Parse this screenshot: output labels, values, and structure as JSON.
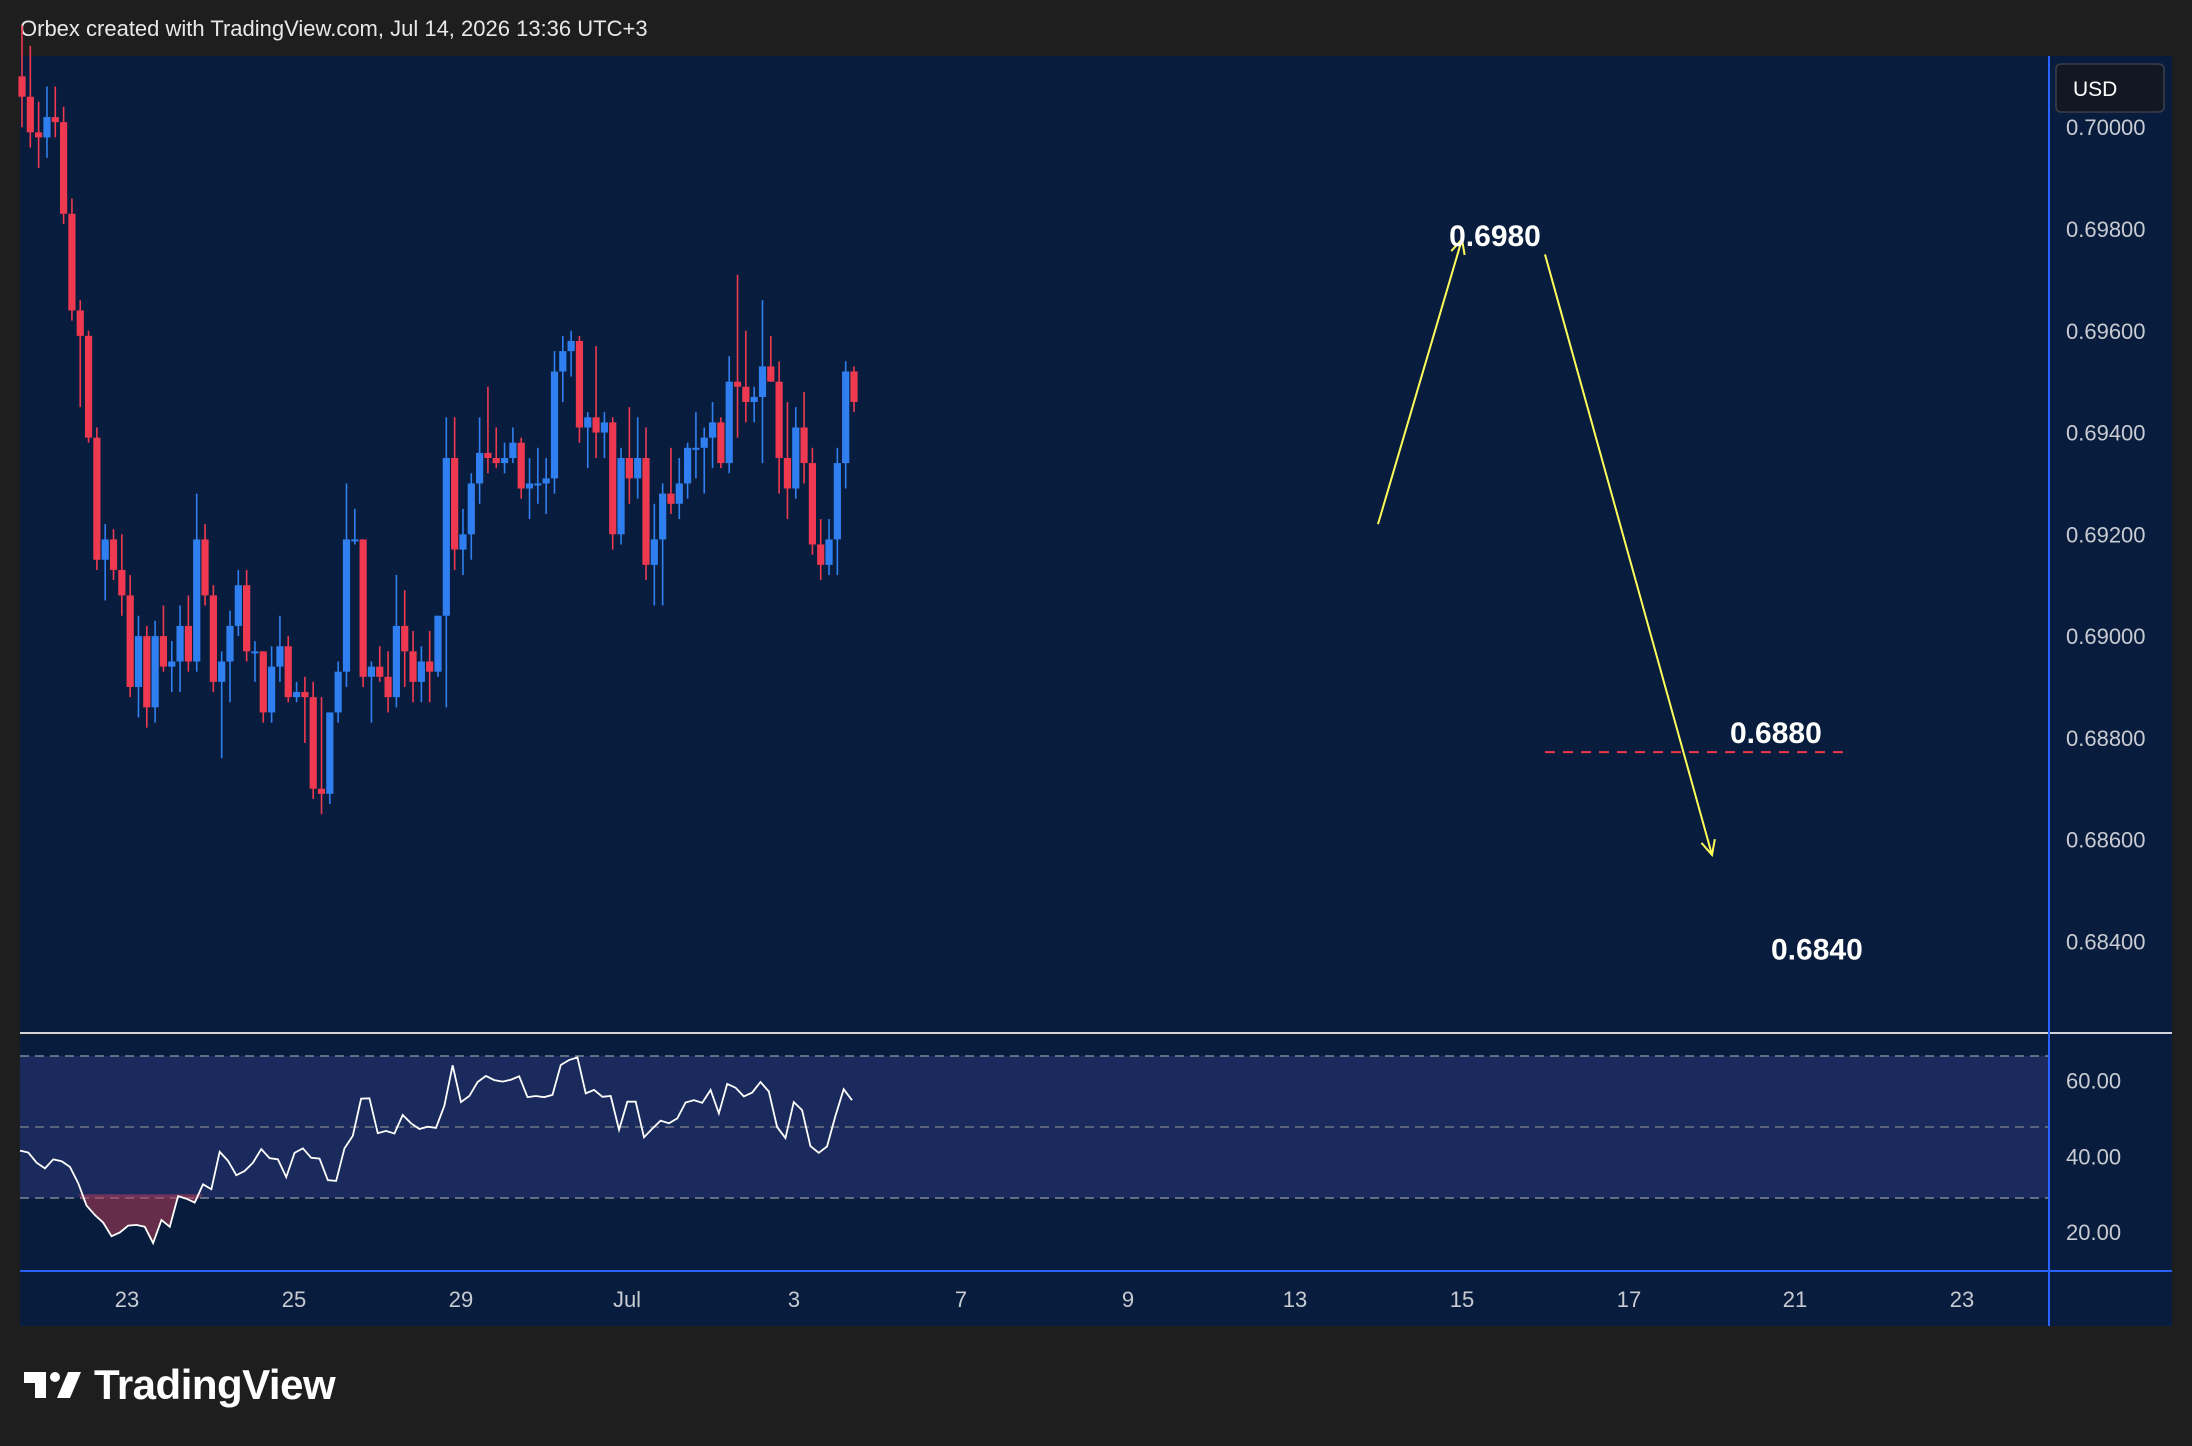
{
  "header": {
    "attribution": "Orbex created with TradingView.com, Jul 14, 2026 13:36 UTC+3"
  },
  "currency_badge": "USD",
  "brand": {
    "name": "TradingView"
  },
  "colors": {
    "background": "#1e1e1e",
    "plot_bg": "#081d3d",
    "up": "#2f7ff0",
    "down": "#ef3950",
    "projection": "#ffff5a",
    "target_level": "#f23645",
    "rsi_line": "#ffffff",
    "rsi_band": "#1a2a5c"
  },
  "chart_data": [
    {
      "type": "candlestick",
      "ylim": [
        0.6822,
        0.7014
      ],
      "y_tick_labels": [
        "0.68400",
        "0.68600",
        "0.68800",
        "0.69000",
        "0.69200",
        "0.69400",
        "0.69600",
        "0.69800",
        "0.70000"
      ],
      "x_tick_labels": [
        "23",
        "25",
        "29",
        "Jul",
        "3",
        "7",
        "9",
        "13",
        "15",
        "17",
        "21",
        "23"
      ],
      "candles": [
        [
          0.701,
          0.702,
          0.7,
          0.7006
        ],
        [
          0.7006,
          0.7016,
          0.6996,
          0.6999
        ],
        [
          0.6999,
          0.7005,
          0.6992,
          0.6998
        ],
        [
          0.6998,
          0.7008,
          0.6994,
          0.7002
        ],
        [
          0.7002,
          0.7008,
          0.6998,
          0.7001
        ],
        [
          0.7001,
          0.7004,
          0.6981,
          0.6983
        ],
        [
          0.6983,
          0.6986,
          0.6962,
          0.6964
        ],
        [
          0.6964,
          0.6966,
          0.6945,
          0.6959
        ],
        [
          0.6959,
          0.696,
          0.6938,
          0.6939
        ],
        [
          0.6939,
          0.6941,
          0.6913,
          0.6915
        ],
        [
          0.6915,
          0.6922,
          0.6907,
          0.6919
        ],
        [
          0.6919,
          0.6921,
          0.6911,
          0.6913
        ],
        [
          0.6913,
          0.692,
          0.6904,
          0.6908
        ],
        [
          0.6908,
          0.6912,
          0.6888,
          0.689
        ],
        [
          0.689,
          0.6904,
          0.6884,
          0.69
        ],
        [
          0.69,
          0.6902,
          0.6882,
          0.6886
        ],
        [
          0.6886,
          0.6903,
          0.6883,
          0.69
        ],
        [
          0.69,
          0.6906,
          0.6893,
          0.6894
        ],
        [
          0.6894,
          0.6899,
          0.6889,
          0.6895
        ],
        [
          0.6895,
          0.6906,
          0.6889,
          0.6902
        ],
        [
          0.6902,
          0.6908,
          0.6893,
          0.6895
        ],
        [
          0.6895,
          0.6928,
          0.6893,
          0.6919
        ],
        [
          0.6919,
          0.6922,
          0.6906,
          0.6908
        ],
        [
          0.6908,
          0.691,
          0.6889,
          0.6891
        ],
        [
          0.6891,
          0.6897,
          0.6876,
          0.6895
        ],
        [
          0.6895,
          0.6905,
          0.6887,
          0.6902
        ],
        [
          0.6902,
          0.6913,
          0.69,
          0.691
        ],
        [
          0.691,
          0.6913,
          0.6895,
          0.6897
        ],
        [
          0.6897,
          0.6899,
          0.6891,
          0.6897
        ],
        [
          0.6897,
          0.6897,
          0.6883,
          0.6885
        ],
        [
          0.6885,
          0.6898,
          0.6883,
          0.6894
        ],
        [
          0.6894,
          0.6904,
          0.6891,
          0.6898
        ],
        [
          0.6898,
          0.69,
          0.6887,
          0.6888
        ],
        [
          0.6888,
          0.6891,
          0.6887,
          0.6889
        ],
        [
          0.6889,
          0.6892,
          0.6879,
          0.6888
        ],
        [
          0.6888,
          0.6891,
          0.6868,
          0.687
        ],
        [
          0.687,
          0.6888,
          0.6865,
          0.6869
        ],
        [
          0.6869,
          0.6885,
          0.6867,
          0.6885
        ],
        [
          0.6885,
          0.6895,
          0.6883,
          0.6893
        ],
        [
          0.6893,
          0.693,
          0.689,
          0.6919
        ],
        [
          0.6919,
          0.6925,
          0.6918,
          0.6919
        ],
        [
          0.6919,
          0.6919,
          0.689,
          0.6892
        ],
        [
          0.6892,
          0.6895,
          0.6883,
          0.6894
        ],
        [
          0.6894,
          0.6898,
          0.6891,
          0.6892
        ],
        [
          0.6892,
          0.6897,
          0.6885,
          0.6888
        ],
        [
          0.6888,
          0.6912,
          0.6886,
          0.6902
        ],
        [
          0.6902,
          0.6909,
          0.689,
          0.6897
        ],
        [
          0.6897,
          0.6901,
          0.6887,
          0.6891
        ],
        [
          0.6891,
          0.6898,
          0.6887,
          0.6895
        ],
        [
          0.6895,
          0.6901,
          0.6887,
          0.6893
        ],
        [
          0.6893,
          0.6904,
          0.6892,
          0.6904
        ],
        [
          0.6904,
          0.6943,
          0.6886,
          0.6935
        ],
        [
          0.6935,
          0.6943,
          0.6913,
          0.6917
        ],
        [
          0.6917,
          0.6925,
          0.6912,
          0.692
        ],
        [
          0.692,
          0.6932,
          0.6915,
          0.693
        ],
        [
          0.693,
          0.6943,
          0.6926,
          0.6936
        ],
        [
          0.6936,
          0.6949,
          0.6932,
          0.6935
        ],
        [
          0.6935,
          0.6941,
          0.6933,
          0.6934
        ],
        [
          0.6934,
          0.6938,
          0.6932,
          0.6935
        ],
        [
          0.6935,
          0.6941,
          0.6934,
          0.6938
        ],
        [
          0.6938,
          0.6939,
          0.6927,
          0.6929
        ],
        [
          0.6929,
          0.6935,
          0.6923,
          0.693
        ],
        [
          0.693,
          0.6937,
          0.6926,
          0.693
        ],
        [
          0.693,
          0.6935,
          0.6924,
          0.6931
        ],
        [
          0.6931,
          0.6956,
          0.6928,
          0.6952
        ],
        [
          0.6952,
          0.6959,
          0.6946,
          0.6956
        ],
        [
          0.6956,
          0.696,
          0.6951,
          0.6958
        ],
        [
          0.6958,
          0.6959,
          0.6938,
          0.6941
        ],
        [
          0.6941,
          0.6944,
          0.6933,
          0.6943
        ],
        [
          0.6943,
          0.6957,
          0.6935,
          0.694
        ],
        [
          0.694,
          0.6944,
          0.6935,
          0.6942
        ],
        [
          0.6942,
          0.6943,
          0.6917,
          0.692
        ],
        [
          0.692,
          0.6937,
          0.6918,
          0.6935
        ],
        [
          0.6935,
          0.6945,
          0.6926,
          0.6931
        ],
        [
          0.6931,
          0.6943,
          0.6927,
          0.6935
        ],
        [
          0.6935,
          0.6941,
          0.6911,
          0.6914
        ],
        [
          0.6914,
          0.6926,
          0.6906,
          0.6919
        ],
        [
          0.6919,
          0.693,
          0.6906,
          0.6928
        ],
        [
          0.6928,
          0.6937,
          0.6924,
          0.6926
        ],
        [
          0.6926,
          0.6935,
          0.6923,
          0.693
        ],
        [
          0.693,
          0.6938,
          0.6927,
          0.6937
        ],
        [
          0.6937,
          0.6944,
          0.6931,
          0.6937
        ],
        [
          0.6937,
          0.6941,
          0.6928,
          0.6939
        ],
        [
          0.6939,
          0.6946,
          0.6933,
          0.6942
        ],
        [
          0.6942,
          0.6943,
          0.6933,
          0.6934
        ],
        [
          0.6934,
          0.6955,
          0.6932,
          0.695
        ],
        [
          0.695,
          0.6971,
          0.6939,
          0.6949
        ],
        [
          0.6949,
          0.696,
          0.6942,
          0.6946
        ],
        [
          0.6946,
          0.6949,
          0.6942,
          0.6947
        ],
        [
          0.6947,
          0.6966,
          0.6934,
          0.6953
        ],
        [
          0.6953,
          0.6959,
          0.695,
          0.695
        ],
        [
          0.695,
          0.6954,
          0.6928,
          0.6935
        ],
        [
          0.6935,
          0.6946,
          0.6923,
          0.6929
        ],
        [
          0.6929,
          0.6945,
          0.6927,
          0.6941
        ],
        [
          0.6941,
          0.6948,
          0.693,
          0.6934
        ],
        [
          0.6934,
          0.6937,
          0.6916,
          0.6918
        ],
        [
          0.6918,
          0.6923,
          0.6911,
          0.6914
        ],
        [
          0.6914,
          0.6923,
          0.6912,
          0.6919
        ],
        [
          0.6919,
          0.6937,
          0.6912,
          0.6934
        ],
        [
          0.6934,
          0.6954,
          0.6929,
          0.6952
        ],
        [
          0.6952,
          0.6953,
          0.6944,
          0.6946
        ]
      ],
      "annotations": [
        {
          "text": "0.6980",
          "price": 0.698
        },
        {
          "text": "0.6880",
          "price": 0.688
        },
        {
          "text": "0.6840",
          "price": 0.684
        }
      ],
      "projection_path": [
        {
          "date": "Jul 14",
          "price": 0.6922
        },
        {
          "date": "Jul 15",
          "price": 0.6978
        },
        {
          "date": "Jul 16",
          "price": 0.6975
        },
        {
          "date": "Jul 20",
          "price": 0.6857
        }
      ],
      "dashed_level": {
        "price": 0.68772,
        "from_date": "Jul 16",
        "to_date": "Jul 22"
      }
    },
    {
      "type": "line",
      "ylim": [
        10,
        72
      ],
      "y_tick_labels": [
        "20.00",
        "40.00",
        "60.00"
      ],
      "band": [
        30,
        70
      ],
      "midline": 50,
      "oversold_level": 30,
      "values": [
        41.5,
        41,
        38.3,
        36.8,
        39.2,
        38.7,
        37.2,
        32.9,
        27,
        24.5,
        22.5,
        18.9,
        19.9,
        21.7,
        21.9,
        21.4,
        17.1,
        23.2,
        21.4,
        29.5,
        28.8,
        27.8,
        32.6,
        31.3,
        41.2,
        38.8,
        35,
        36.1,
        38.3,
        41.9,
        39.5,
        39.2,
        34.5,
        40.9,
        42.1,
        39.6,
        39.4,
        33.7,
        33.5,
        42.1,
        45.4,
        55.2,
        55.3,
        46.1,
        46.7,
        46,
        50.9,
        48.7,
        47.2,
        47.8,
        47.5,
        53.3,
        64,
        54.3,
        55.9,
        59.6,
        61.2,
        60.1,
        59.7,
        60.2,
        61.1,
        55.6,
        55.9,
        55.6,
        56.2,
        64.1,
        65.4,
        66.1,
        56.6,
        57.5,
        55.7,
        55.9,
        47,
        54.4,
        54.4,
        45,
        47.3,
        49.4,
        48.7,
        50,
        54.2,
        54.8,
        54.1,
        57.5,
        51.3,
        59.1,
        58.1,
        55.8,
        56.8,
        59.6,
        57.1,
        47.7,
        44.8,
        54.3,
        52.2,
        42.7,
        40.9,
        42.6,
        50.6,
        57.7,
        54.8
      ]
    }
  ]
}
